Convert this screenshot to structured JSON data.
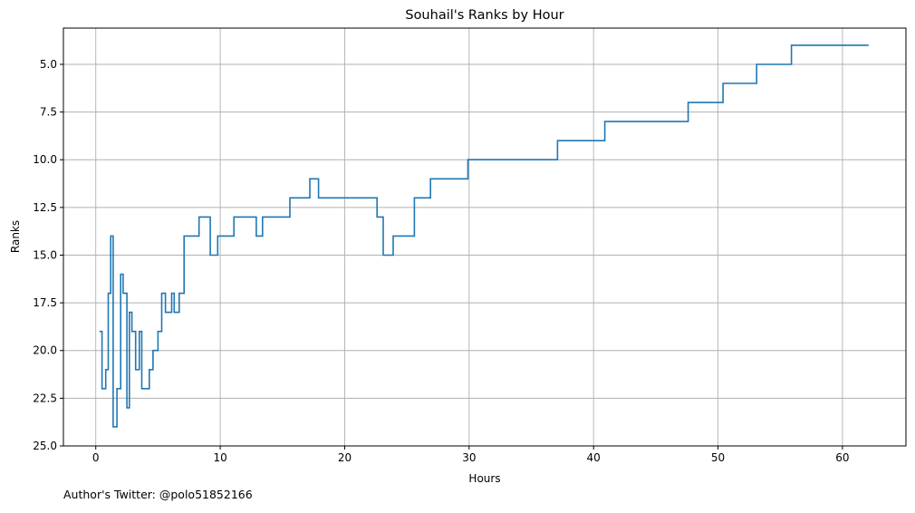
{
  "chart_data": {
    "type": "line",
    "step": true,
    "title": "Souhail's Ranks by Hour",
    "xlabel": "Hours",
    "ylabel": "Ranks",
    "xlim": [
      -2.6,
      65.1
    ],
    "ylim": [
      25.0,
      3.1
    ],
    "y_inverted": true,
    "grid": true,
    "x_ticks": [
      0,
      10,
      20,
      30,
      40,
      50,
      60
    ],
    "x_tick_labels": [
      "0",
      "10",
      "20",
      "30",
      "40",
      "50",
      "60"
    ],
    "y_ticks": [
      5.0,
      7.5,
      10.0,
      12.5,
      15.0,
      17.5,
      20.0,
      22.5,
      25.0
    ],
    "y_tick_labels": [
      "5.0",
      "7.5",
      "10.0",
      "12.5",
      "15.0",
      "17.5",
      "20.0",
      "22.5",
      "25.0"
    ],
    "line_color": "#1f77b4",
    "series": [
      {
        "x": [
          0.3,
          0.5,
          0.8,
          1.0,
          1.2,
          1.4,
          1.7,
          2.0,
          2.2,
          2.5,
          2.7,
          2.9,
          3.2,
          3.5,
          3.7,
          4.3,
          4.6,
          5.0,
          5.3,
          5.6,
          6.1,
          6.3,
          6.7,
          7.1,
          8.3,
          9.2,
          9.8,
          11.1,
          12.9,
          13.4,
          15.6,
          17.2,
          17.9,
          22.6,
          23.1,
          23.9,
          25.6,
          26.9,
          29.9,
          37.1,
          40.9,
          47.6,
          50.4,
          53.1,
          55.9,
          62.1
        ],
        "y": [
          19,
          22,
          21,
          17,
          14,
          24,
          22,
          16,
          17,
          23,
          18,
          19,
          21,
          19,
          22,
          21,
          20,
          19,
          17,
          18,
          17,
          18,
          17,
          14,
          13,
          15,
          14,
          13,
          14,
          13,
          12,
          11,
          12,
          13,
          15,
          14,
          12,
          11,
          10,
          9,
          8,
          7,
          6,
          5,
          4,
          4
        ]
      }
    ],
    "footer_text": "Author's Twitter: @polo51852166"
  }
}
